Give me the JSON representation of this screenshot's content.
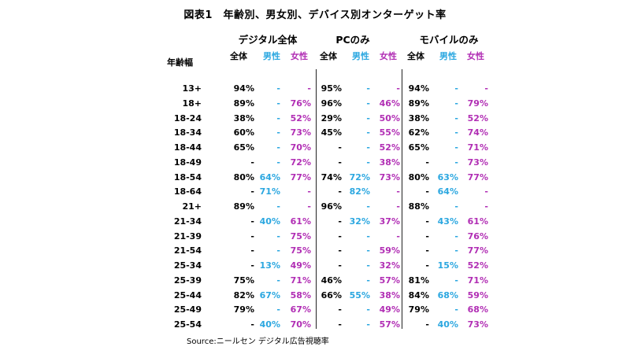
{
  "title": "図表1　年齢別、男女別、デバイス別オンターゲット率",
  "age_header": "年齢幅",
  "groups": [
    {
      "name": "デジタル全体",
      "sub": [
        "全体",
        "男性",
        "女性"
      ]
    },
    {
      "name": "PCのみ",
      "sub": [
        "全体",
        "男性",
        "女性"
      ]
    },
    {
      "name": "モバイルのみ",
      "sub": [
        "全体",
        "男性",
        "女性"
      ]
    }
  ],
  "colors": {
    "all": "#000000",
    "male": "#2ba7e0",
    "female": "#b12eb4"
  },
  "rows": [
    {
      "age": "13+",
      "values": [
        "94%",
        "-",
        "-",
        "95%",
        "-",
        "-",
        "94%",
        "-",
        "-"
      ]
    },
    {
      "age": "18+",
      "values": [
        "89%",
        "-",
        "76%",
        "96%",
        "-",
        "46%",
        "89%",
        "-",
        "79%"
      ]
    },
    {
      "age": "18-24",
      "values": [
        "38%",
        "-",
        "52%",
        "29%",
        "-",
        "50%",
        "38%",
        "-",
        "52%"
      ]
    },
    {
      "age": "18-34",
      "values": [
        "60%",
        "-",
        "73%",
        "45%",
        "-",
        "55%",
        "62%",
        "-",
        "74%"
      ]
    },
    {
      "age": "18-44",
      "values": [
        "65%",
        "-",
        "70%",
        "-",
        "-",
        "52%",
        "65%",
        "-",
        "71%"
      ]
    },
    {
      "age": "18-49",
      "values": [
        "-",
        "-",
        "72%",
        "-",
        "-",
        "38%",
        "-",
        "-",
        "73%"
      ]
    },
    {
      "age": "18-54",
      "values": [
        "80%",
        "64%",
        "77%",
        "74%",
        "72%",
        "73%",
        "80%",
        "63%",
        "77%"
      ]
    },
    {
      "age": "18-64",
      "values": [
        "-",
        "71%",
        "-",
        "-",
        "82%",
        "-",
        "-",
        "64%",
        "-"
      ]
    },
    {
      "age": "21+",
      "values": [
        "89%",
        "-",
        "-",
        "96%",
        "-",
        "-",
        "88%",
        "-",
        "-"
      ]
    },
    {
      "age": "21-34",
      "values": [
        "-",
        "40%",
        "61%",
        "-",
        "32%",
        "37%",
        "-",
        "43%",
        "61%"
      ]
    },
    {
      "age": "21-39",
      "values": [
        "-",
        "-",
        "75%",
        "-",
        "-",
        "-",
        "-",
        "-",
        "76%"
      ]
    },
    {
      "age": "21-54",
      "values": [
        "-",
        "-",
        "75%",
        "-",
        "-",
        "59%",
        "-",
        "-",
        "77%"
      ]
    },
    {
      "age": "25-34",
      "values": [
        "-",
        "13%",
        "49%",
        "-",
        "-",
        "32%",
        "-",
        "15%",
        "52%"
      ]
    },
    {
      "age": "25-39",
      "values": [
        "75%",
        "-",
        "71%",
        "46%",
        "-",
        "57%",
        "81%",
        "-",
        "71%"
      ]
    },
    {
      "age": "25-44",
      "values": [
        "82%",
        "67%",
        "58%",
        "66%",
        "55%",
        "38%",
        "84%",
        "68%",
        "59%"
      ]
    },
    {
      "age": "25-49",
      "values": [
        "79%",
        "-",
        "67%",
        "-",
        "-",
        "49%",
        "79%",
        "-",
        "68%"
      ]
    },
    {
      "age": "25-54",
      "values": [
        "-",
        "40%",
        "70%",
        "-",
        "-",
        "57%",
        "-",
        "40%",
        "73%"
      ]
    }
  ],
  "source": "Source:ニールセン デジタル広告視聴率"
}
